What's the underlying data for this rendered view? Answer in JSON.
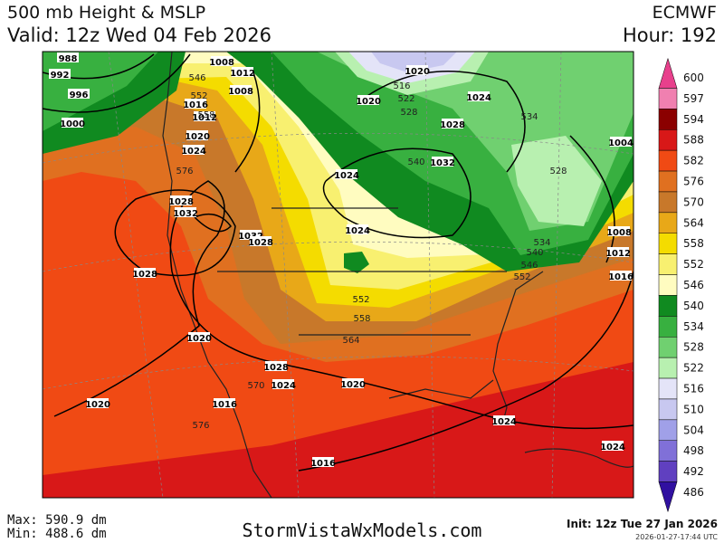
{
  "header": {
    "title": "500 mb Height & MSLP",
    "valid": "Valid: 12z Wed 04 Feb 2026",
    "model": "ECMWF",
    "hour": "Hour: 192"
  },
  "colorbar": {
    "levels": [
      600,
      597,
      594,
      588,
      582,
      576,
      570,
      564,
      558,
      552,
      546,
      540,
      534,
      528,
      522,
      516,
      510,
      504,
      498,
      492,
      486
    ],
    "colors": [
      "#e8408c",
      "#f080b0",
      "#8b0000",
      "#d81818",
      "#f04a14",
      "#e07020",
      "#c8782a",
      "#e8a818",
      "#f4dc00",
      "#f8f070",
      "#fffcc0",
      "#108a20",
      "#38b040",
      "#70d070",
      "#b8f0b0",
      "#e4e4f8",
      "#c8c8f0",
      "#a0a0e8",
      "#8070d8",
      "#6040c0",
      "#3010a0"
    ]
  },
  "map": {
    "isobar_labels": [
      "988",
      "992",
      "996",
      "1000",
      "1008",
      "1012",
      "1008",
      "1016",
      "1012",
      "1020",
      "1024",
      "1028",
      "1032",
      "1032",
      "1028",
      "1028",
      "1020",
      "1028",
      "1024",
      "1020",
      "1016",
      "1020",
      "1016",
      "1024",
      "1024",
      "1020",
      "1020",
      "1024",
      "1028",
      "1032",
      "1024",
      "1024",
      "1008",
      "1012",
      "1016",
      "1004"
    ],
    "height_labels": [
      "546",
      "552",
      "558",
      "576",
      "570",
      "576",
      "552",
      "558",
      "564",
      "552",
      "546",
      "540",
      "534",
      "540",
      "528",
      "522",
      "516",
      "534",
      "528"
    ]
  },
  "footer": {
    "max": "Max: 590.9 dm",
    "min": "Min: 488.6 dm",
    "site": "StormVistaWxModels.com",
    "init": "Init: 12z Tue 27 Jan 2026",
    "stamp": "2026-01-27-17:44 UTC"
  }
}
